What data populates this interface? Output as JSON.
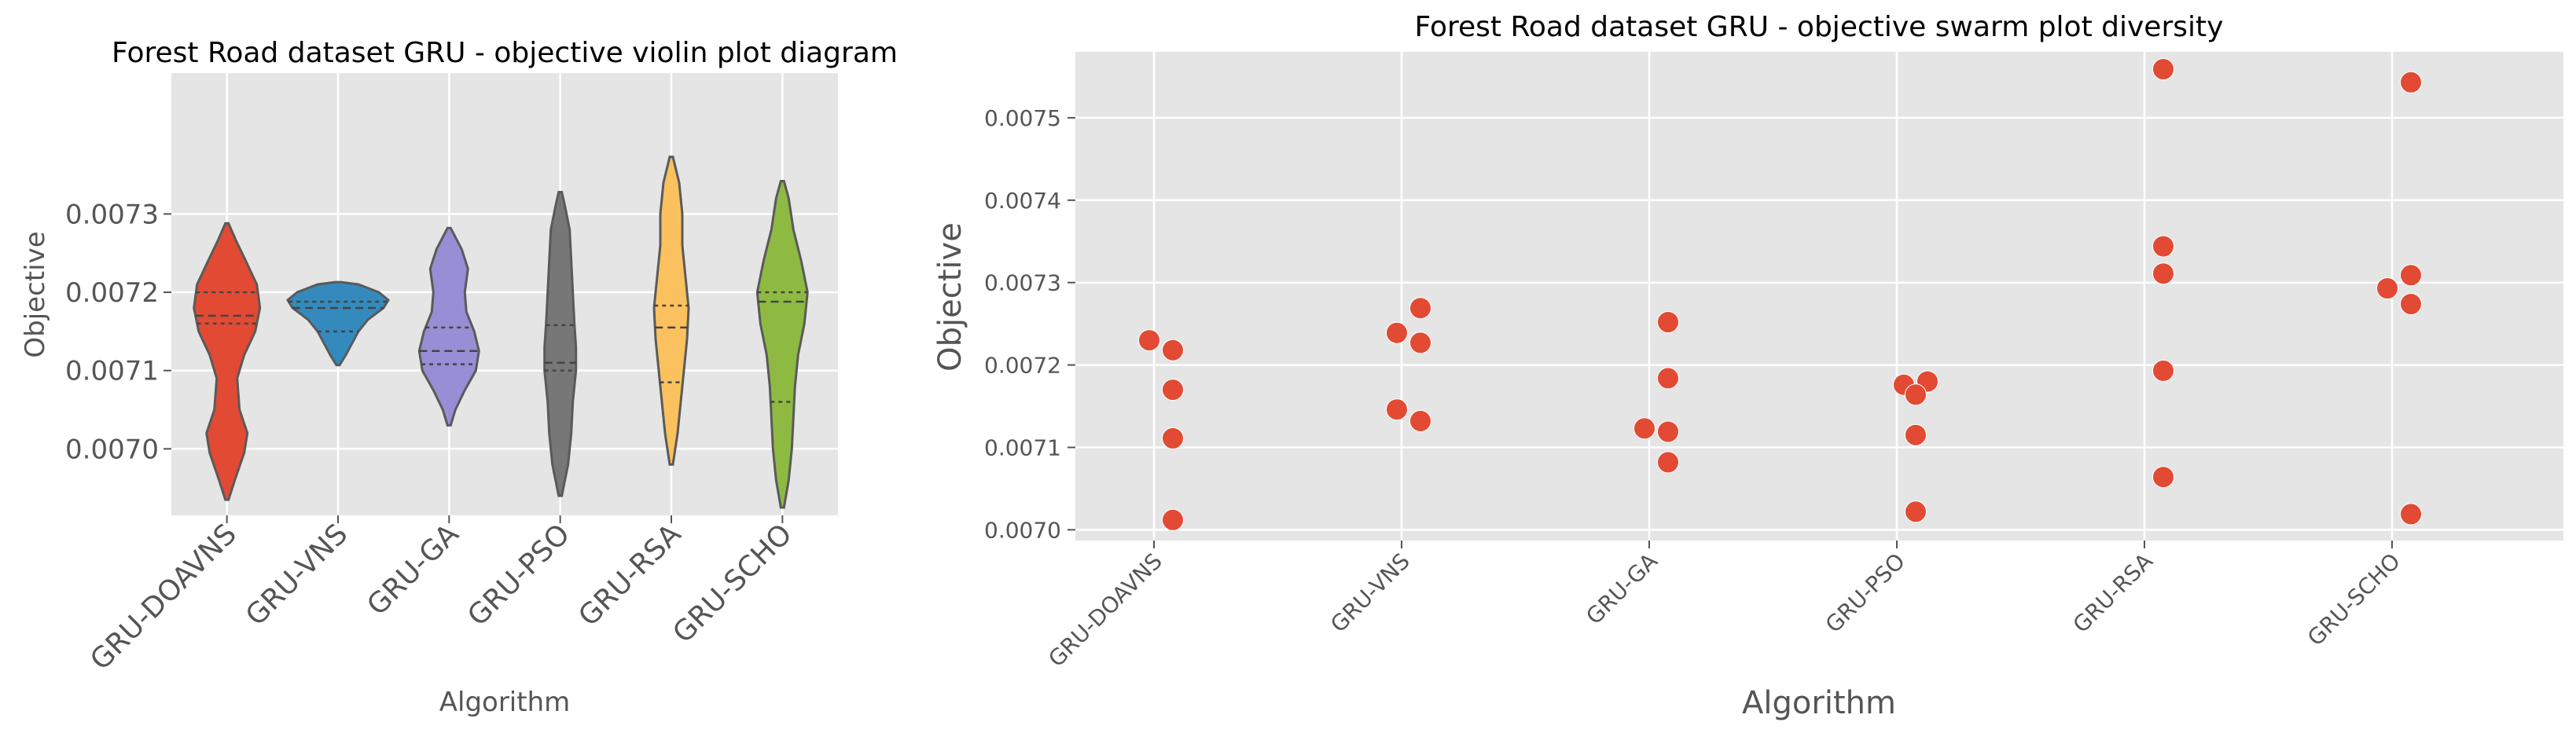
{
  "chart_data": [
    {
      "type": "violin",
      "title": "Forest Road dataset GRU -  objective violin plot diagram",
      "xlabel": "Algorithm",
      "ylabel": "Objective",
      "categories": [
        "GRU-DOAVNS",
        "GRU-VNS",
        "GRU-GA",
        "GRU-PSO",
        "GRU-RSA",
        "GRU-SCHO"
      ],
      "yticks": [
        "0.0070",
        "0.0071",
        "0.0072",
        "0.0073"
      ],
      "ytick_values": [
        0.007,
        0.0071,
        0.0072,
        0.0073
      ],
      "ylim": [
        0.006915,
        0.00748
      ],
      "colors": [
        "#e24a33",
        "#348abd",
        "#988ed5",
        "#777777",
        "#fbc15e",
        "#8eba42"
      ],
      "violins": [
        {
          "min": 0.006935,
          "max": 0.007288,
          "quartiles": [
            0.00716,
            0.00717,
            0.0072
          ],
          "shape": [
            [
              0.006935,
              2
            ],
            [
              0.00696,
              10
            ],
            [
              0.006995,
              22
            ],
            [
              0.00702,
              26
            ],
            [
              0.00705,
              16
            ],
            [
              0.00709,
              13
            ],
            [
              0.00712,
              22
            ],
            [
              0.00715,
              36
            ],
            [
              0.00718,
              42
            ],
            [
              0.00721,
              38
            ],
            [
              0.00724,
              24
            ],
            [
              0.007265,
              12
            ],
            [
              0.007288,
              2
            ]
          ]
        },
        {
          "min": 0.007107,
          "max": 0.007213,
          "quartiles": [
            0.00715,
            0.00718,
            0.007188
          ],
          "shape": [
            [
              0.007107,
              2
            ],
            [
              0.00712,
              10
            ],
            [
              0.007135,
              18
            ],
            [
              0.00715,
              26
            ],
            [
              0.007165,
              38
            ],
            [
              0.00718,
              58
            ],
            [
              0.00719,
              64
            ],
            [
              0.0072,
              52
            ],
            [
              0.00721,
              26
            ],
            [
              0.007213,
              4
            ]
          ]
        },
        {
          "min": 0.00703,
          "max": 0.007282,
          "quartiles": [
            0.007108,
            0.007125,
            0.007155
          ],
          "shape": [
            [
              0.00703,
              2
            ],
            [
              0.00705,
              8
            ],
            [
              0.007075,
              20
            ],
            [
              0.0071,
              34
            ],
            [
              0.007125,
              38
            ],
            [
              0.00715,
              32
            ],
            [
              0.007175,
              22
            ],
            [
              0.0072,
              20
            ],
            [
              0.00723,
              24
            ],
            [
              0.007255,
              16
            ],
            [
              0.007282,
              2
            ]
          ]
        },
        {
          "min": 0.00694,
          "max": 0.007328,
          "quartiles": [
            0.0071,
            0.00711,
            0.007158
          ],
          "shape": [
            [
              0.00694,
              2
            ],
            [
              0.00698,
              10
            ],
            [
              0.00702,
              14
            ],
            [
              0.00706,
              16
            ],
            [
              0.0071,
              20
            ],
            [
              0.00713,
              20
            ],
            [
              0.00716,
              18
            ],
            [
              0.0072,
              16
            ],
            [
              0.00724,
              14
            ],
            [
              0.00728,
              12
            ],
            [
              0.00731,
              6
            ],
            [
              0.007328,
              2
            ]
          ]
        },
        {
          "min": 0.00698,
          "max": 0.007373,
          "quartiles": [
            0.007085,
            0.007155,
            0.007183
          ],
          "shape": [
            [
              0.00698,
              2
            ],
            [
              0.00702,
              8
            ],
            [
              0.00706,
              12
            ],
            [
              0.0071,
              16
            ],
            [
              0.00714,
              20
            ],
            [
              0.00718,
              22
            ],
            [
              0.00722,
              18
            ],
            [
              0.00726,
              14
            ],
            [
              0.0073,
              14
            ],
            [
              0.00734,
              10
            ],
            [
              0.007373,
              2
            ]
          ]
        },
        {
          "min": 0.006925,
          "max": 0.007342,
          "quartiles": [
            0.00706,
            0.007188,
            0.0072
          ],
          "shape": [
            [
              0.006925,
              2
            ],
            [
              0.00696,
              8
            ],
            [
              0.007,
              12
            ],
            [
              0.00704,
              14
            ],
            [
              0.00708,
              16
            ],
            [
              0.00712,
              20
            ],
            [
              0.00716,
              28
            ],
            [
              0.0072,
              32
            ],
            [
              0.00724,
              24
            ],
            [
              0.00728,
              14
            ],
            [
              0.00732,
              8
            ],
            [
              0.007342,
              2
            ]
          ]
        }
      ]
    },
    {
      "type": "swarm",
      "title": "Forest Road dataset GRU -  objective swarm plot diversity",
      "xlabel": "Algorithm",
      "ylabel": "Objective",
      "categories": [
        "GRU-DOAVNS",
        "GRU-VNS",
        "GRU-GA",
        "GRU-PSO",
        "GRU-RSA",
        "GRU-SCHO"
      ],
      "yticks": [
        "0.0070",
        "0.0071",
        "0.0072",
        "0.0073",
        "0.0074",
        "0.0075"
      ],
      "ytick_values": [
        0.007,
        0.0071,
        0.0072,
        0.0073,
        0.0074,
        0.0075
      ],
      "ylim": [
        0.006987,
        0.00758
      ],
      "point_color": "#e24a33",
      "points": [
        {
          "category": "GRU-DOAVNS",
          "y": 0.00723,
          "offset": -1
        },
        {
          "category": "GRU-DOAVNS",
          "y": 0.007218,
          "offset": 0
        },
        {
          "category": "GRU-DOAVNS",
          "y": 0.00717,
          "offset": 0
        },
        {
          "category": "GRU-DOAVNS",
          "y": 0.007111,
          "offset": 0
        },
        {
          "category": "GRU-DOAVNS",
          "y": 0.007012,
          "offset": 0
        },
        {
          "category": "GRU-VNS",
          "y": 0.007269,
          "offset": 0
        },
        {
          "category": "GRU-VNS",
          "y": 0.007239,
          "offset": -1
        },
        {
          "category": "GRU-VNS",
          "y": 0.007227,
          "offset": 0
        },
        {
          "category": "GRU-VNS",
          "y": 0.007146,
          "offset": -1
        },
        {
          "category": "GRU-VNS",
          "y": 0.007132,
          "offset": 0
        },
        {
          "category": "GRU-GA",
          "y": 0.007252,
          "offset": 0
        },
        {
          "category": "GRU-GA",
          "y": 0.007184,
          "offset": 0
        },
        {
          "category": "GRU-GA",
          "y": 0.007123,
          "offset": -1
        },
        {
          "category": "GRU-GA",
          "y": 0.007119,
          "offset": 0
        },
        {
          "category": "GRU-GA",
          "y": 0.007082,
          "offset": 0
        },
        {
          "category": "GRU-PSO",
          "y": 0.00718,
          "offset": 0.5
        },
        {
          "category": "GRU-PSO",
          "y": 0.007176,
          "offset": -0.5
        },
        {
          "category": "GRU-PSO",
          "y": 0.007164,
          "offset": 0
        },
        {
          "category": "GRU-PSO",
          "y": 0.007115,
          "offset": 0
        },
        {
          "category": "GRU-PSO",
          "y": 0.007022,
          "offset": 0
        },
        {
          "category": "GRU-RSA",
          "y": 0.007559,
          "offset": 0
        },
        {
          "category": "GRU-RSA",
          "y": 0.007344,
          "offset": 0
        },
        {
          "category": "GRU-RSA",
          "y": 0.007311,
          "offset": 0
        },
        {
          "category": "GRU-RSA",
          "y": 0.007193,
          "offset": 0
        },
        {
          "category": "GRU-RSA",
          "y": 0.007064,
          "offset": 0
        },
        {
          "category": "GRU-SCHO",
          "y": 0.007543,
          "offset": 0
        },
        {
          "category": "GRU-SCHO",
          "y": 0.007309,
          "offset": 0
        },
        {
          "category": "GRU-SCHO",
          "y": 0.007293,
          "offset": -1
        },
        {
          "category": "GRU-SCHO",
          "y": 0.007274,
          "offset": 0
        },
        {
          "category": "GRU-SCHO",
          "y": 0.007019,
          "offset": 0
        }
      ]
    }
  ]
}
